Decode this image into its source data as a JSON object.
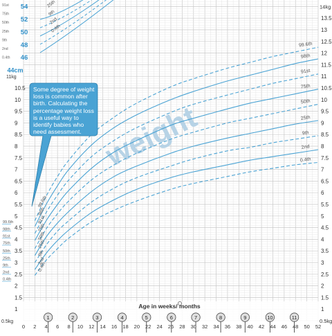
{
  "chart_data": {
    "type": "line",
    "title": "",
    "watermark": "weight",
    "xlabel": "Age in weeks/ months",
    "x_axis": {
      "range": [
        0,
        52
      ],
      "week_ticks": [
        "0",
        "2",
        "4",
        "6",
        "8",
        "10",
        "12",
        "14",
        "16",
        "18",
        "20",
        "22",
        "24",
        "26",
        "28",
        "30",
        "32",
        "34",
        "36",
        "38",
        "40",
        "42",
        "44",
        "46",
        "48",
        "50",
        "52"
      ],
      "month_markers": [
        {
          "label": "1",
          "week": 4.35
        },
        {
          "label": "2",
          "week": 8.7
        },
        {
          "label": "3",
          "week": 13.0
        },
        {
          "label": "4",
          "week": 17.4
        },
        {
          "label": "5",
          "week": 21.7
        },
        {
          "label": "6",
          "week": 26.1
        },
        {
          "label": "7",
          "week": 30.4
        },
        {
          "label": "8",
          "week": 34.8
        },
        {
          "label": "9",
          "week": 39.1
        },
        {
          "label": "10",
          "week": 43.5
        },
        {
          "label": "11",
          "week": 47.8
        }
      ]
    },
    "weight_axis": {
      "unit": "kg",
      "range": [
        0.5,
        14
      ],
      "left_ticks": [
        {
          "value": 0.5,
          "label": "0.5kg"
        },
        {
          "value": 1,
          "label": "1"
        },
        {
          "value": 1.5,
          "label": "1.5"
        },
        {
          "value": 2,
          "label": "2"
        },
        {
          "value": 2.5,
          "label": "2.5"
        },
        {
          "value": 3,
          "label": "3"
        },
        {
          "value": 3.5,
          "label": "3.5"
        },
        {
          "value": 4,
          "label": "4"
        },
        {
          "value": 4.5,
          "label": "4.5"
        },
        {
          "value": 5,
          "label": "5"
        },
        {
          "value": 5.5,
          "label": "5.5"
        },
        {
          "value": 6,
          "label": "6"
        },
        {
          "value": 6.5,
          "label": "6.5"
        },
        {
          "value": 7,
          "label": "7"
        },
        {
          "value": 7.5,
          "label": "7.5"
        },
        {
          "value": 8,
          "label": "8"
        },
        {
          "value": 8.5,
          "label": "8.5"
        },
        {
          "value": 9,
          "label": "9"
        },
        {
          "value": 9.5,
          "label": "9.5"
        },
        {
          "value": 10,
          "label": "10"
        },
        {
          "value": 10.5,
          "label": "10.5"
        },
        {
          "value": 11,
          "label": "11kg"
        }
      ],
      "right_ticks": [
        {
          "value": 0.5,
          "label": "0.5kg"
        },
        {
          "value": 1,
          "label": "1"
        },
        {
          "value": 1.5,
          "label": "1.5"
        },
        {
          "value": 2,
          "label": "2"
        },
        {
          "value": 2.5,
          "label": "2.5"
        },
        {
          "value": 3,
          "label": "3"
        },
        {
          "value": 3.5,
          "label": "3.5"
        },
        {
          "value": 4,
          "label": "4"
        },
        {
          "value": 4.5,
          "label": "4.5"
        },
        {
          "value": 5,
          "label": "5"
        },
        {
          "value": 5.5,
          "label": "5.5"
        },
        {
          "value": 6,
          "label": "6"
        },
        {
          "value": 6.5,
          "label": "6.5"
        },
        {
          "value": 7,
          "label": "7"
        },
        {
          "value": 7.5,
          "label": "7.5"
        },
        {
          "value": 8,
          "label": "8"
        },
        {
          "value": 8.5,
          "label": "8.5"
        },
        {
          "value": 9,
          "label": "9"
        },
        {
          "value": 9.5,
          "label": "9.5"
        },
        {
          "value": 10,
          "label": "10"
        },
        {
          "value": 10.5,
          "label": "10.5"
        },
        {
          "value": 11,
          "label": "11"
        },
        {
          "value": 11.5,
          "label": "11.5"
        },
        {
          "value": 12,
          "label": "12"
        },
        {
          "value": 12.5,
          "label": "12.5"
        },
        {
          "value": 13,
          "label": "13"
        },
        {
          "value": 13.5,
          "label": "13.5"
        },
        {
          "value": 14,
          "label": "14kg"
        }
      ]
    },
    "birth_centiles": [
      {
        "label": "99.6th",
        "value": 4.75
      },
      {
        "label": "98th",
        "value": 4.45
      },
      {
        "label": "91st",
        "value": 4.15
      },
      {
        "label": "75th",
        "value": 3.85
      },
      {
        "label": "50th",
        "value": 3.5
      },
      {
        "label": "25th",
        "value": 3.2
      },
      {
        "label": "9th",
        "value": 2.9
      },
      {
        "label": "2nd",
        "value": 2.6
      },
      {
        "label": "0.4th",
        "value": 2.3
      }
    ],
    "x": [
      2,
      4,
      6,
      8,
      12,
      16,
      20,
      26,
      30,
      36,
      40,
      44,
      48,
      52
    ],
    "series": [
      {
        "name": "99.6th",
        "dashed": true,
        "values": [
          4.8,
          5.85,
          6.7,
          7.4,
          8.5,
          9.25,
          9.85,
          10.55,
          10.9,
          11.35,
          11.6,
          11.85,
          12.05,
          12.25
        ]
      },
      {
        "name": "98th",
        "dashed": false,
        "values": [
          4.55,
          5.5,
          6.3,
          7.0,
          8.05,
          8.8,
          9.35,
          10.0,
          10.35,
          10.8,
          11.05,
          11.3,
          11.55,
          11.75
        ]
      },
      {
        "name": "91st",
        "dashed": true,
        "values": [
          4.25,
          5.15,
          5.9,
          6.55,
          7.55,
          8.25,
          8.8,
          9.45,
          9.8,
          10.2,
          10.45,
          10.7,
          10.9,
          11.1
        ]
      },
      {
        "name": "75th",
        "dashed": false,
        "values": [
          3.95,
          4.8,
          5.5,
          6.1,
          7.05,
          7.75,
          8.25,
          8.9,
          9.2,
          9.6,
          9.85,
          10.05,
          10.25,
          10.45
        ]
      },
      {
        "name": "50th",
        "dashed": true,
        "values": [
          3.6,
          4.45,
          5.1,
          5.65,
          6.55,
          7.2,
          7.7,
          8.3,
          8.6,
          9.0,
          9.2,
          9.4,
          9.6,
          9.8
        ]
      },
      {
        "name": "25th",
        "dashed": false,
        "values": [
          3.3,
          4.1,
          4.7,
          5.2,
          6.05,
          6.7,
          7.15,
          7.7,
          8.0,
          8.35,
          8.55,
          8.75,
          8.95,
          9.1
        ]
      },
      {
        "name": "9th",
        "dashed": true,
        "values": [
          3.0,
          3.75,
          4.35,
          4.8,
          5.6,
          6.2,
          6.65,
          7.15,
          7.45,
          7.8,
          7.95,
          8.15,
          8.3,
          8.45
        ]
      },
      {
        "name": "2nd",
        "dashed": false,
        "values": [
          2.7,
          3.4,
          3.95,
          4.4,
          5.15,
          5.7,
          6.15,
          6.65,
          6.9,
          7.2,
          7.4,
          7.55,
          7.7,
          7.85
        ]
      },
      {
        "name": "0.4th",
        "dashed": true,
        "values": [
          2.45,
          3.1,
          3.6,
          4.05,
          4.75,
          5.25,
          5.65,
          6.15,
          6.4,
          6.7,
          6.9,
          7.05,
          7.2,
          7.3
        ]
      }
    ],
    "length_panel": {
      "unit": "cm",
      "tick_labels": [
        {
          "label": "54",
          "value": 54
        },
        {
          "label": "52",
          "value": 52
        },
        {
          "label": "50",
          "value": 50
        },
        {
          "label": "48",
          "value": 48
        },
        {
          "label": "46",
          "value": 46
        },
        {
          "label": "44cm",
          "value": 44
        }
      ],
      "centile_labels": [
        "91st",
        "75th",
        "50th",
        "25th",
        "9th",
        "2nd",
        "0.4th"
      ],
      "curve_labels": [
        "25th",
        "9th",
        "2nd",
        "0.4th"
      ]
    },
    "annotation": "Some degree of weight loss is common after birth. Calculating the percentage weight loss is a useful way to identify babies who need assessment.",
    "colors": {
      "curve": "#4aa3d4",
      "grid_major": "#c8c8c8",
      "grid_minor": "#e4e4e4",
      "callout_fill": "#4aa3d4",
      "callout_stroke": "#2e7fab",
      "watermark": "#b7d3e6",
      "axis_text": "#333333",
      "length_text": "#2f8fc8",
      "month_circle_bg": "#e0e0e0"
    }
  }
}
